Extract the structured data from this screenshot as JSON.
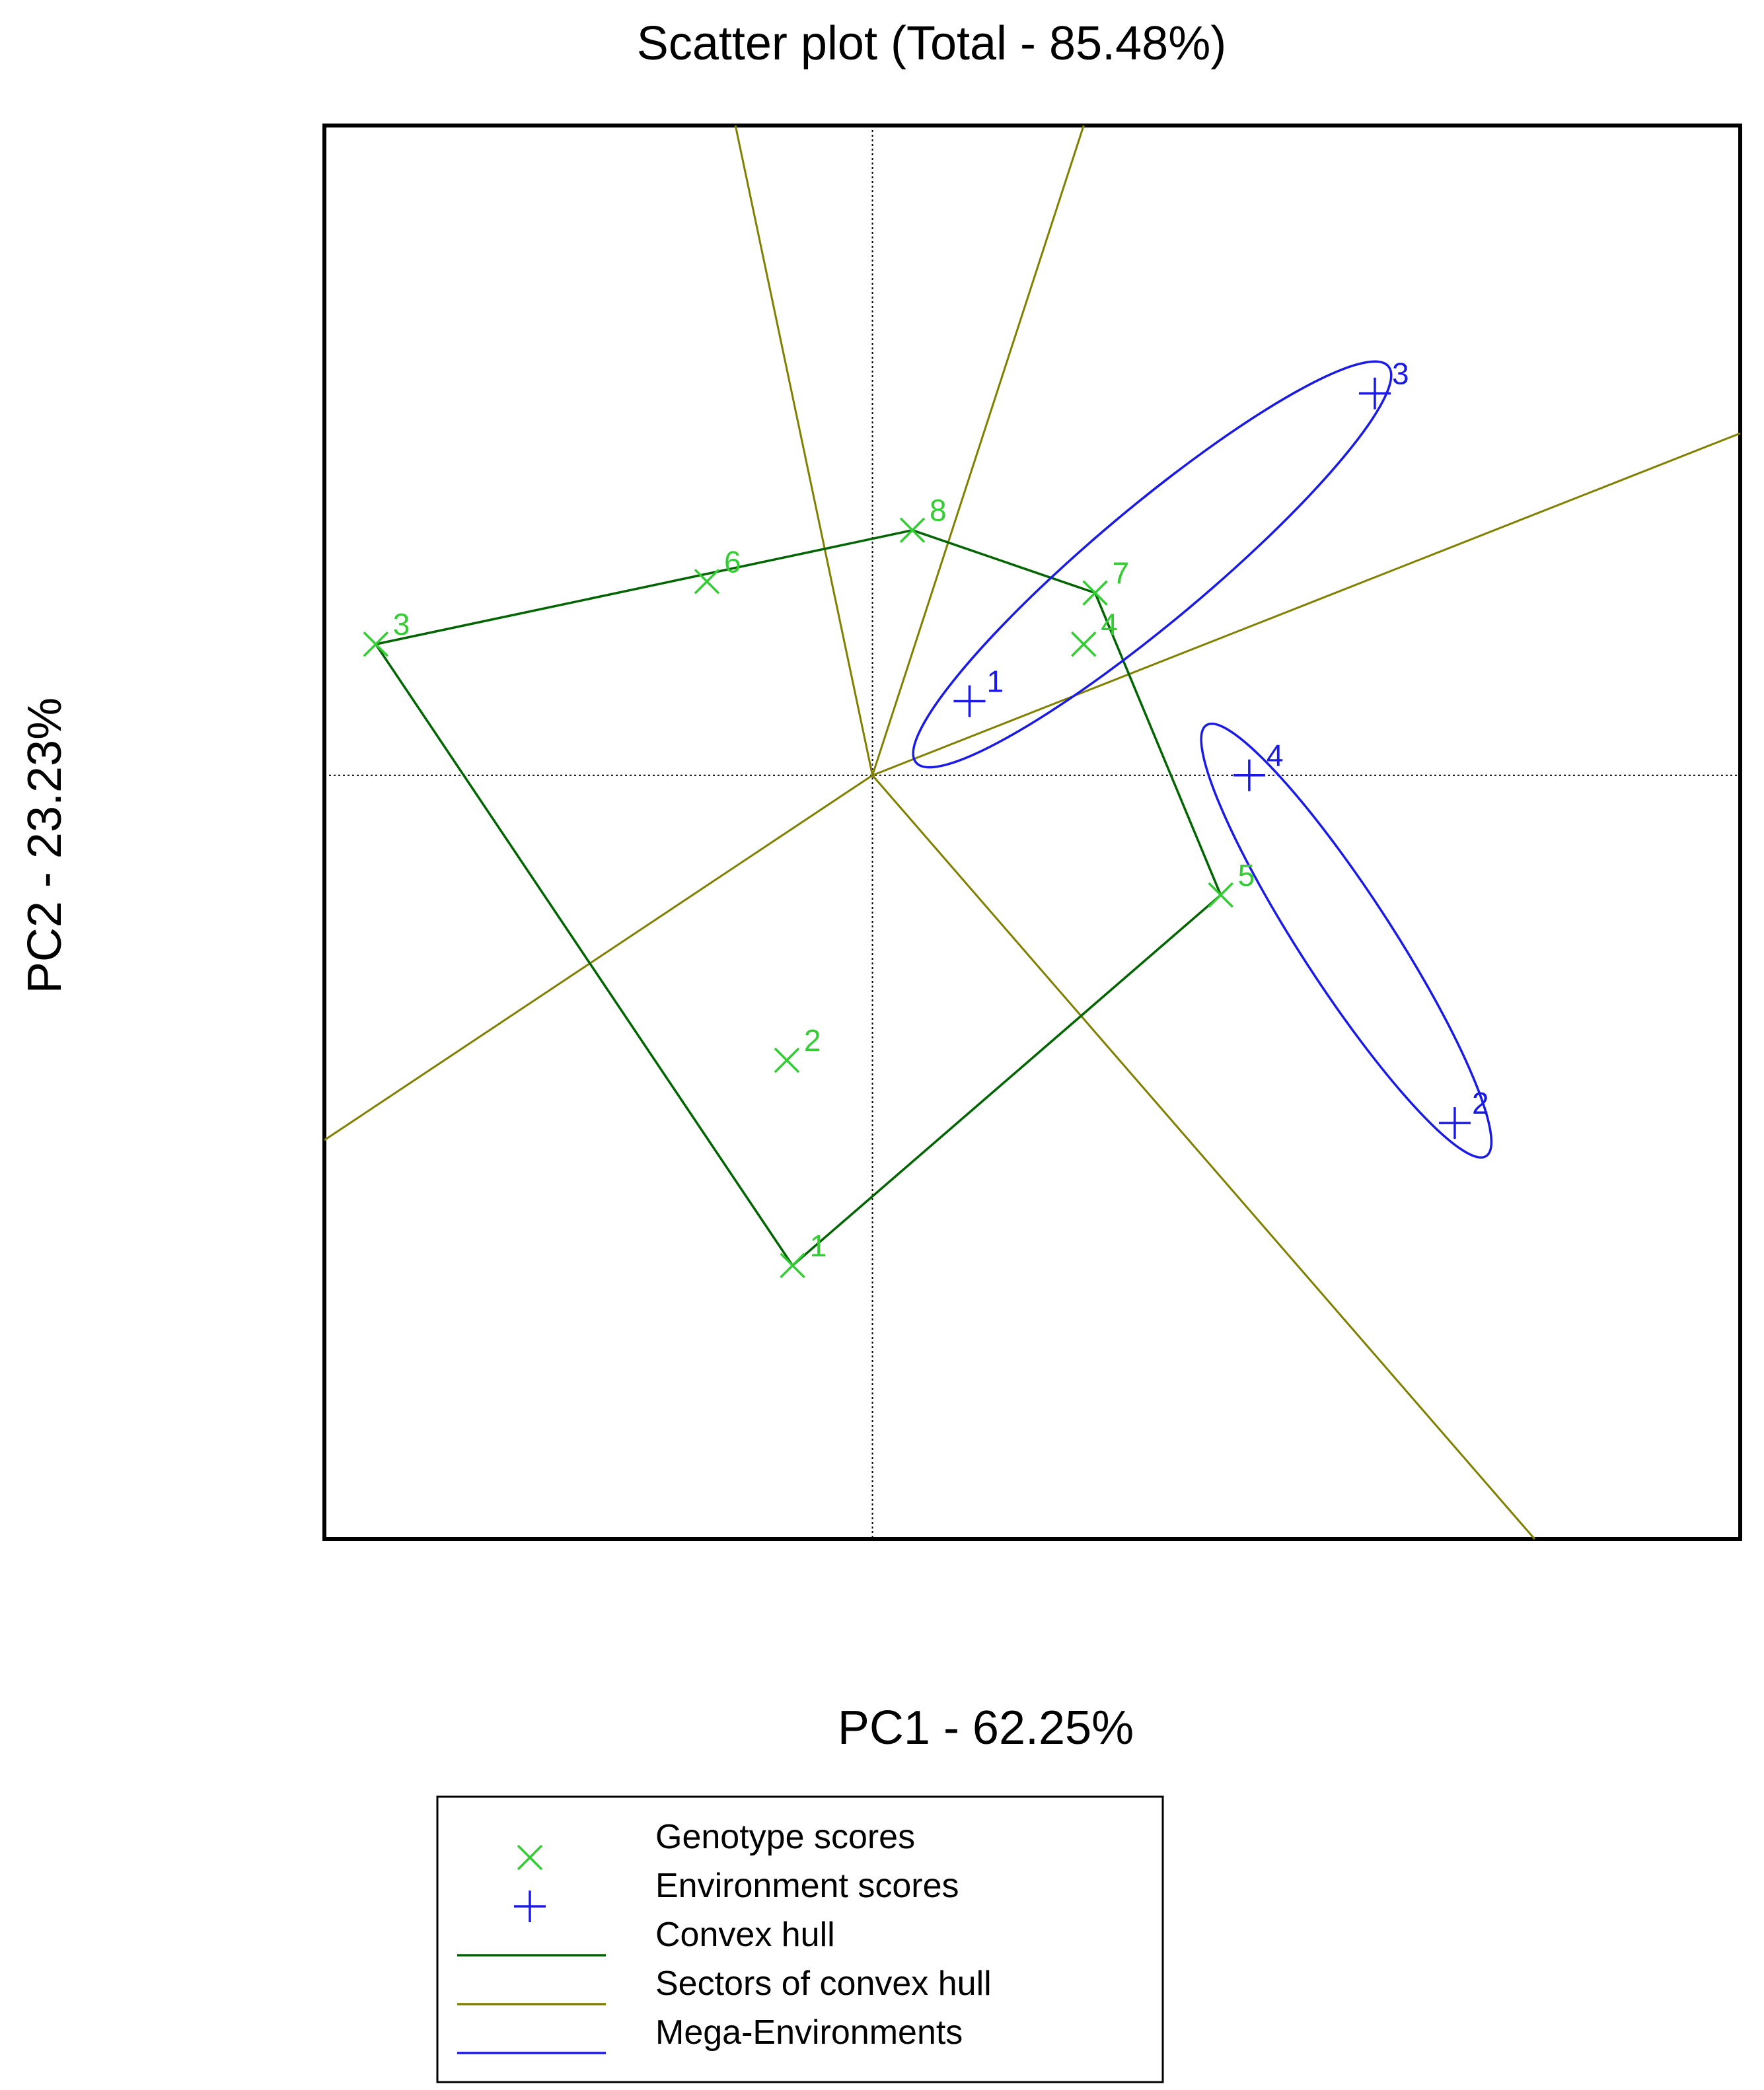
{
  "chart_data": {
    "type": "scatter",
    "title": "Scatter plot (Total - 85.48%)",
    "xlabel": "PC1 - 62.25%",
    "ylabel": "PC2 - 23.23%",
    "xlim": [
      -0.96,
      1.52
    ],
    "ylim": [
      -1.34,
      1.14
    ],
    "grid": false,
    "reference_lines": "dotted lines at x = 0 and y = 0",
    "legend_position": "bottom-center",
    "colors": {
      "genotype": "#33cc33",
      "environment": "#1a1ae6",
      "convex_hull": "#006400",
      "sectors": "#808000",
      "mega_environments": "#1a1ae6"
    },
    "series": [
      {
        "name": "Genotype scores",
        "marker": "x",
        "points": [
          {
            "label": "1",
            "x": -0.14,
            "y": -0.86
          },
          {
            "label": "2",
            "x": -0.15,
            "y": -0.5
          },
          {
            "label": "3",
            "x": -0.87,
            "y": 0.23
          },
          {
            "label": "4",
            "x": 0.37,
            "y": 0.23
          },
          {
            "label": "5",
            "x": 0.61,
            "y": -0.21
          },
          {
            "label": "6",
            "x": -0.29,
            "y": 0.34
          },
          {
            "label": "7",
            "x": 0.39,
            "y": 0.32
          },
          {
            "label": "8",
            "x": 0.07,
            "y": 0.43
          }
        ]
      },
      {
        "name": "Environment scores",
        "marker": "+",
        "points": [
          {
            "label": "1",
            "x": 0.17,
            "y": 0.13
          },
          {
            "label": "2",
            "x": 1.02,
            "y": -0.61
          },
          {
            "label": "3",
            "x": 0.88,
            "y": 0.67
          },
          {
            "label": "4",
            "x": 0.66,
            "y": 0.0
          }
        ]
      }
    ],
    "convex_hull": [
      "3",
      "8",
      "7",
      "5",
      "1"
    ],
    "sector_rays": [
      {
        "x": -0.24,
        "y": 1.14
      },
      {
        "x": 0.37,
        "y": 1.14
      },
      {
        "x": 1.52,
        "y": 0.6
      },
      {
        "x": 1.16,
        "y": -1.34
      },
      {
        "x": -0.96,
        "y": -0.64
      }
    ],
    "mega_environments": [
      {
        "center": [
          0.49,
          0.37
        ],
        "semi_axes": [
          0.54,
          0.1
        ],
        "angle_deg": 40
      },
      {
        "center": [
          0.83,
          -0.29
        ],
        "semi_axes": [
          0.45,
          0.08
        ],
        "angle_deg": -57
      }
    ],
    "legend": [
      {
        "label": "Genotype scores",
        "symbol": "x"
      },
      {
        "label": "Environment scores",
        "symbol": "+"
      },
      {
        "label": "Convex hull",
        "symbol": "line-hull"
      },
      {
        "label": "Sectors of convex hull",
        "symbol": "line-sector"
      },
      {
        "label": "Mega-Environments",
        "symbol": "line-mega"
      }
    ]
  }
}
